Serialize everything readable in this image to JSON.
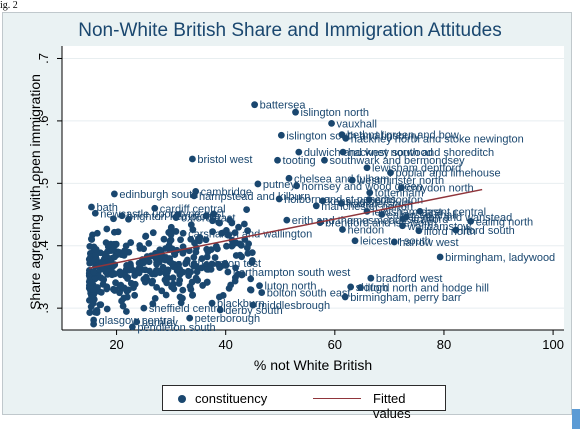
{
  "page": {
    "caption": "ig. 2"
  },
  "colors": {
    "panel_bg": "#eaf2f3",
    "plot_bg": "#ffffff",
    "marker": "#1a476f",
    "fit_line": "#90353b",
    "title": "#1a476f"
  },
  "chart_data": {
    "type": "scatter",
    "title": "Non-White British Share and Immigration Attitudes",
    "xlabel": "% not White British",
    "ylabel": "Share agreeing with open immigration",
    "xlim": [
      10,
      102
    ],
    "ylim": [
      0.265,
      0.72
    ],
    "x_ticks": [
      20,
      40,
      60,
      80,
      100
    ],
    "y_ticks": [
      0.3,
      0.4,
      0.5,
      0.6,
      0.7
    ],
    "y_tick_labels": [
      ".3",
      ".4",
      ".5",
      ".6",
      ".7"
    ],
    "grid": "horizontal",
    "legend": {
      "position": "bottom",
      "items": [
        "constituency",
        "Fitted values"
      ]
    },
    "fitted_line": {
      "x": [
        15,
        87
      ],
      "y": [
        0.364,
        0.49
      ]
    },
    "labeled_points": [
      {
        "label": "battersea",
        "x": 45.3,
        "y": 0.626
      },
      {
        "label": "islington north",
        "x": 52.8,
        "y": 0.614
      },
      {
        "label": "vauxhall",
        "x": 59.4,
        "y": 0.596
      },
      {
        "label": "islington south and finsbury",
        "x": 50.2,
        "y": 0.577
      },
      {
        "label": "bethnal green and bow",
        "x": 61.3,
        "y": 0.578
      },
      {
        "label": "hackney north and stoke newington",
        "x": 62.0,
        "y": 0.572
      },
      {
        "label": "dulwich and west norwood",
        "x": 53.4,
        "y": 0.55
      },
      {
        "label": "hackney south and shoreditch",
        "x": 61.5,
        "y": 0.55
      },
      {
        "label": "bristol west",
        "x": 33.9,
        "y": 0.539
      },
      {
        "label": "tooting",
        "x": 49.5,
        "y": 0.537
      },
      {
        "label": "southwark and bermondsey",
        "x": 58.1,
        "y": 0.537
      },
      {
        "label": "lewisham deptford",
        "x": 65.9,
        "y": 0.525
      },
      {
        "label": "poplar and limehouse",
        "x": 70.2,
        "y": 0.517
      },
      {
        "label": "chelsea and fulham",
        "x": 51.6,
        "y": 0.508
      },
      {
        "label": "westminster north",
        "x": 63.2,
        "y": 0.505
      },
      {
        "label": "putney",
        "x": 45.9,
        "y": 0.499
      },
      {
        "label": "hornsey and wood green",
        "x": 53.0,
        "y": 0.496
      },
      {
        "label": "croydon north",
        "x": 72.2,
        "y": 0.493
      },
      {
        "label": "edinburgh south",
        "x": 19.6,
        "y": 0.483
      },
      {
        "label": "cambridge",
        "x": 34.5,
        "y": 0.487
      },
      {
        "label": "hampstead and kilburn",
        "x": 34.2,
        "y": 0.48
      },
      {
        "label": "tottenham",
        "x": 66.4,
        "y": 0.485
      },
      {
        "label": "holborn and st pancras",
        "x": 49.8,
        "y": 0.475
      },
      {
        "label": "edmonton",
        "x": 66.3,
        "y": 0.474
      },
      {
        "label": "kensington",
        "x": 57.8,
        "y": 0.472
      },
      {
        "label": "hammersmith",
        "x": 61.2,
        "y": 0.468
      },
      {
        "label": "brent central",
        "x": 75.6,
        "y": 0.455
      },
      {
        "label": "ealing southall",
        "x": 68.6,
        "y": 0.45
      },
      {
        "label": "bath",
        "x": 15.4,
        "y": 0.462
      },
      {
        "label": "cardiff central",
        "x": 27.0,
        "y": 0.46
      },
      {
        "label": "manchester gorton",
        "x": 56.6,
        "y": 0.464
      },
      {
        "label": "lewisham east",
        "x": 65.9,
        "y": 0.455
      },
      {
        "label": "leyton and wanstead",
        "x": 73.1,
        "y": 0.446
      },
      {
        "label": "ealing north",
        "x": 84.9,
        "y": 0.439
      },
      {
        "label": "newcastle upon tyne east",
        "x": 16.1,
        "y": 0.452
      },
      {
        "label": "brighton kemptown",
        "x": 21.0,
        "y": 0.448
      },
      {
        "label": "oxford east",
        "x": 30.9,
        "y": 0.445
      },
      {
        "label": "erith and thamesmead",
        "x": 51.2,
        "y": 0.441
      },
      {
        "label": "brentford and isleworth",
        "x": 57.3,
        "y": 0.437
      },
      {
        "label": "ilford south",
        "x": 82.2,
        "y": 0.425
      },
      {
        "label": "ilford north",
        "x": 75.4,
        "y": 0.424
      },
      {
        "label": "hendon",
        "x": 61.4,
        "y": 0.426
      },
      {
        "label": "carshalton and wallington",
        "x": 32.2,
        "y": 0.42
      },
      {
        "label": "harrow west",
        "x": 70.9,
        "y": 0.406
      },
      {
        "label": "walthamstow",
        "x": 72.4,
        "y": 0.432
      },
      {
        "label": "stratford",
        "x": 72.5,
        "y": 0.443
      },
      {
        "label": "leicester south",
        "x": 63.7,
        "y": 0.408
      },
      {
        "label": "birmingham, ladywood",
        "x": 79.3,
        "y": 0.382
      },
      {
        "label": "southampton test",
        "x": 30.1,
        "y": 0.372
      },
      {
        "label": "northampton south west",
        "x": 40.4,
        "y": 0.358
      },
      {
        "label": "bradford west",
        "x": 66.6,
        "y": 0.348
      },
      {
        "label": "luton north",
        "x": 46.2,
        "y": 0.336
      },
      {
        "label": "slough",
        "x": 62.9,
        "y": 0.334
      },
      {
        "label": "bolton south east",
        "x": 46.6,
        "y": 0.325
      },
      {
        "label": "ilford north and hodge hill",
        "x": 64.7,
        "y": 0.333
      },
      {
        "label": "birmingham, perry barr",
        "x": 61.9,
        "y": 0.318
      },
      {
        "label": "glasgow central",
        "x": 15.8,
        "y": 0.281
      },
      {
        "label": "peterborough",
        "x": 33.4,
        "y": 0.284
      },
      {
        "label": "derby south",
        "x": 39.0,
        "y": 0.297
      },
      {
        "label": "blackburn",
        "x": 37.5,
        "y": 0.308
      },
      {
        "label": "middlesbrough",
        "x": 45.0,
        "y": 0.305
      },
      {
        "label": "burnley",
        "x": 23.7,
        "y": 0.278
      },
      {
        "label": "pendleton south",
        "x": 22.9,
        "y": 0.27
      },
      {
        "label": "sheffield central",
        "x": 25.0,
        "y": 0.3
      }
    ],
    "cluster_points": {
      "x_range": [
        15,
        45
      ],
      "y_range": [
        0.27,
        0.48
      ],
      "count": 380,
      "note": "dense unlabeled-readable constituency cluster"
    }
  }
}
